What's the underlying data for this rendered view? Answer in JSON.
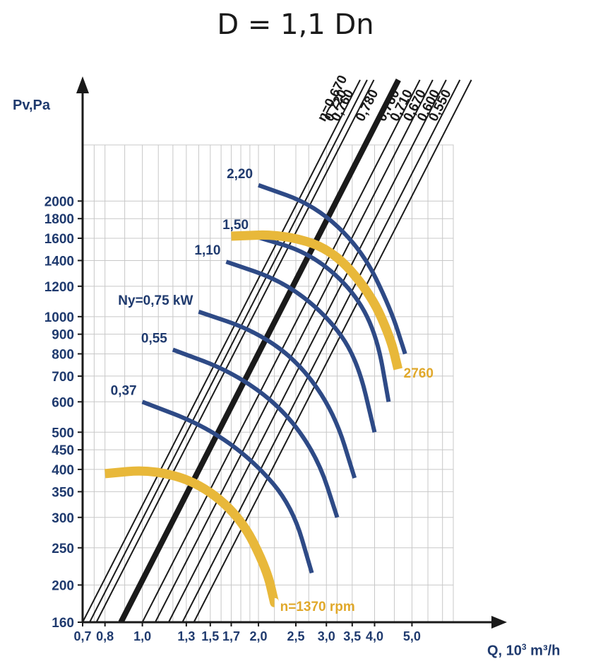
{
  "chart_data": {
    "type": "line",
    "title": "D = 1,1 Dn",
    "ylabel": "Pv,Pa",
    "xlabel_main": "Q, 10",
    "xlabel_exp": "3",
    "xlabel_unit": " m³/h",
    "x_scale": "log",
    "y_scale": "log",
    "xlim": [
      0.7,
      6.4
    ],
    "ylim": [
      160,
      2800
    ],
    "grid": true,
    "x_ticks": [
      "0,7",
      "0,8",
      "1,0",
      "1,3",
      "1,5",
      "1,7",
      "2,0",
      "2,5",
      "3,0",
      "3,5",
      "4,0",
      "5,0"
    ],
    "y_ticks": [
      "160",
      "200",
      "250",
      "300",
      "350",
      "400",
      "450",
      "500",
      "600",
      "700",
      "800",
      "900",
      "1000",
      "1200",
      "1400",
      "1600",
      "1800",
      "2000"
    ],
    "efficiency_lines": {
      "labels": [
        "η=0,670",
        "0,720",
        "0,760",
        "0,780",
        "0,760",
        "0,710",
        "0,670",
        "0,600",
        "0,550"
      ],
      "values": [
        0.67,
        0.72,
        0.76,
        0.78,
        0.76,
        0.71,
        0.67,
        0.6,
        0.55
      ],
      "q_at_160pa": [
        0.7,
        0.73,
        0.76,
        0.88,
        1.0,
        1.08,
        1.17,
        1.27,
        1.36
      ]
    },
    "power_curves": {
      "label_prefix": "Ny=",
      "unit": " kW",
      "series": [
        {
          "name": "0,37",
          "points": [
            [
              1.0,
              600
            ],
            [
              1.45,
              520
            ],
            [
              1.95,
              420
            ],
            [
              2.45,
              320
            ],
            [
              2.75,
              215
            ]
          ]
        },
        {
          "name": "0,55",
          "points": [
            [
              1.2,
              820
            ],
            [
              1.7,
              720
            ],
            [
              2.3,
              580
            ],
            [
              2.85,
              430
            ],
            [
              3.2,
              300
            ]
          ]
        },
        {
          "name": "0,75",
          "points": [
            [
              1.4,
              1030
            ],
            [
              1.95,
              920
            ],
            [
              2.55,
              760
            ],
            [
              3.15,
              560
            ],
            [
              3.55,
              380
            ]
          ]
        },
        {
          "name": "1,10",
          "points": [
            [
              1.65,
              1390
            ],
            [
              2.3,
              1240
            ],
            [
              3.0,
              1010
            ],
            [
              3.6,
              780
            ],
            [
              4.0,
              500
            ]
          ]
        },
        {
          "name": "1,50",
          "points": [
            [
              1.95,
              1620
            ],
            [
              2.7,
              1470
            ],
            [
              3.5,
              1180
            ],
            [
              4.05,
              900
            ],
            [
              4.35,
              600
            ]
          ]
        },
        {
          "name": "2,20",
          "points": [
            [
              2.0,
              2200
            ],
            [
              2.8,
              1950
            ],
            [
              3.7,
              1500
            ],
            [
              4.4,
              1050
            ],
            [
              4.8,
              800
            ]
          ]
        }
      ]
    },
    "speed_curves": [
      {
        "name": "n=1370 rpm",
        "points": [
          [
            0.8,
            390
          ],
          [
            1.05,
            400
          ],
          [
            1.4,
            370
          ],
          [
            1.8,
            300
          ],
          [
            2.1,
            220
          ],
          [
            2.2,
            180
          ]
        ]
      },
      {
        "name": "2760",
        "points": [
          [
            1.7,
            1620
          ],
          [
            2.3,
            1640
          ],
          [
            3.1,
            1500
          ],
          [
            3.9,
            1150
          ],
          [
            4.4,
            880
          ],
          [
            4.6,
            730
          ]
        ]
      }
    ],
    "colors": {
      "axis": "#1f3a6e",
      "label": "#1f3a6e",
      "grid": "#c8c8c8",
      "efficiency": "#1a1a1a",
      "power": "#2e4a86",
      "speed": "#e8b83a",
      "speed_label": "#e0a82a"
    }
  }
}
